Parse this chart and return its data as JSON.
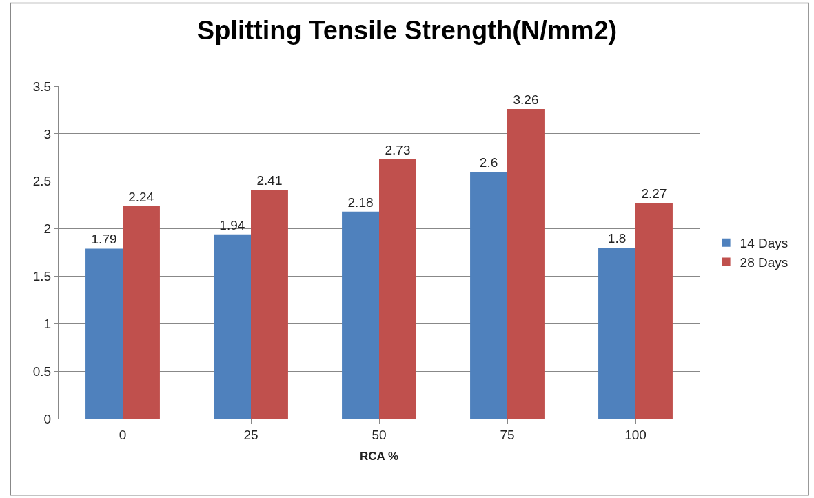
{
  "chart_data": {
    "type": "bar",
    "title": "Splitting Tensile Strength(N/mm2)",
    "xlabel": "RCA %",
    "categories": [
      "0",
      "25",
      "50",
      "75",
      "100"
    ],
    "series": [
      {
        "name": "14 Days",
        "color": "#4f81bd",
        "values": [
          1.79,
          1.94,
          2.18,
          2.6,
          1.8
        ]
      },
      {
        "name": "28 Days",
        "color": "#c0504d",
        "values": [
          2.24,
          2.41,
          2.73,
          3.26,
          2.27
        ]
      }
    ],
    "ylim": [
      0,
      3.5
    ],
    "yticks": [
      0,
      0.5,
      1,
      1.5,
      2,
      2.5,
      3,
      3.5
    ],
    "grid": "y",
    "legend": "right",
    "data_labels": true
  }
}
